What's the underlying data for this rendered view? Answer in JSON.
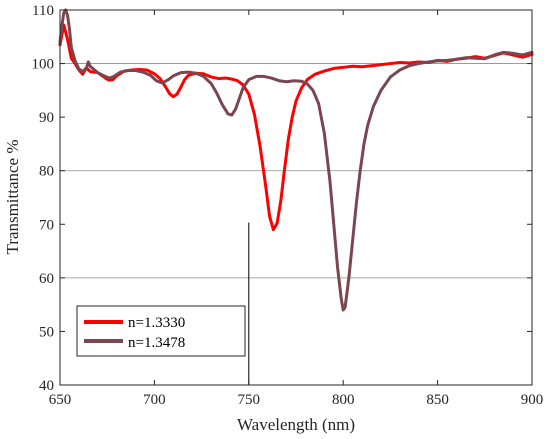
{
  "chart_data": {
    "type": "line",
    "xlabel": "Wavelength (nm)",
    "ylabel": "Transmittance %",
    "xlim": [
      650,
      900
    ],
    "ylim": [
      40,
      110
    ],
    "xticks": [
      650,
      700,
      750,
      800,
      850,
      900
    ],
    "yticks": [
      40,
      50,
      60,
      70,
      80,
      90,
      100,
      110
    ],
    "grid": "horizontal at 60, 80, 100",
    "legend_position": "bottom-left",
    "annotation_line": {
      "x": 750,
      "y_from": 40,
      "y_to": 70.3
    },
    "series": [
      {
        "name": "n=1.3330",
        "color": "#ff0000",
        "points": [
          [
            650,
            103.5
          ],
          [
            652,
            107.2
          ],
          [
            654,
            104.5
          ],
          [
            656,
            101
          ],
          [
            658,
            100
          ],
          [
            660,
            98.8
          ],
          [
            662,
            98
          ],
          [
            664,
            99.2
          ],
          [
            666,
            98.5
          ],
          [
            670,
            98.3
          ],
          [
            674,
            97.3
          ],
          [
            676,
            96.9
          ],
          [
            678,
            97
          ],
          [
            680,
            97.7
          ],
          [
            684,
            98.6
          ],
          [
            688,
            98.8
          ],
          [
            692,
            98.9
          ],
          [
            696,
            98.8
          ],
          [
            700,
            98.1
          ],
          [
            703,
            97.2
          ],
          [
            706,
            95.6
          ],
          [
            708,
            94.4
          ],
          [
            710,
            93.8
          ],
          [
            712,
            94.3
          ],
          [
            714,
            95.6
          ],
          [
            716,
            97
          ],
          [
            718,
            97.8
          ],
          [
            722,
            98.2
          ],
          [
            726,
            98.1
          ],
          [
            730,
            97.5
          ],
          [
            734,
            97.2
          ],
          [
            738,
            97.3
          ],
          [
            741,
            97.1
          ],
          [
            744,
            96.8
          ],
          [
            747,
            96
          ],
          [
            750,
            94.3
          ],
          [
            753,
            90.5
          ],
          [
            756,
            84.5
          ],
          [
            759,
            77
          ],
          [
            761,
            71.5
          ],
          [
            763,
            69
          ],
          [
            765,
            70.2
          ],
          [
            767,
            74.5
          ],
          [
            769,
            80.5
          ],
          [
            771,
            86
          ],
          [
            773,
            90
          ],
          [
            775,
            93
          ],
          [
            778,
            95.5
          ],
          [
            781,
            97
          ],
          [
            785,
            98
          ],
          [
            790,
            98.6
          ],
          [
            795,
            99.1
          ],
          [
            800,
            99.3
          ],
          [
            805,
            99.5
          ],
          [
            810,
            99.4
          ],
          [
            815,
            99.6
          ],
          [
            820,
            99.8
          ],
          [
            825,
            100
          ],
          [
            830,
            100.2
          ],
          [
            835,
            100.1
          ],
          [
            840,
            100.3
          ],
          [
            845,
            100.2
          ],
          [
            850,
            100.6
          ],
          [
            855,
            100.4
          ],
          [
            860,
            100.8
          ],
          [
            865,
            101
          ],
          [
            870,
            101.3
          ],
          [
            875,
            101
          ],
          [
            880,
            101.5
          ],
          [
            885,
            102
          ],
          [
            890,
            101.6
          ],
          [
            895,
            101.2
          ],
          [
            900,
            101.7
          ]
        ]
      },
      {
        "name": "n=1.3478",
        "color": "#7a4650",
        "points": [
          [
            650,
            104
          ],
          [
            651,
            107
          ],
          [
            652,
            109.5
          ],
          [
            653,
            110
          ],
          [
            654,
            109
          ],
          [
            655,
            106.5
          ],
          [
            656,
            103
          ],
          [
            658,
            100.5
          ],
          [
            660,
            99
          ],
          [
            662,
            98.5
          ],
          [
            664,
            99.2
          ],
          [
            665,
            100.3
          ],
          [
            666,
            99.5
          ],
          [
            670,
            98.3
          ],
          [
            674,
            97.6
          ],
          [
            676,
            97.3
          ],
          [
            678,
            97.5
          ],
          [
            682,
            98.4
          ],
          [
            686,
            98.7
          ],
          [
            690,
            98.7
          ],
          [
            694,
            98.4
          ],
          [
            698,
            97.8
          ],
          [
            701,
            96.8
          ],
          [
            704,
            96.4
          ],
          [
            707,
            96.9
          ],
          [
            710,
            97.7
          ],
          [
            714,
            98.3
          ],
          [
            718,
            98.4
          ],
          [
            722,
            98.2
          ],
          [
            726,
            97.6
          ],
          [
            730,
            96.3
          ],
          [
            733,
            94.5
          ],
          [
            736,
            92.3
          ],
          [
            739,
            90.6
          ],
          [
            741,
            90.4
          ],
          [
            743,
            91.5
          ],
          [
            745,
            93.5
          ],
          [
            747,
            95.5
          ],
          [
            750,
            97
          ],
          [
            754,
            97.6
          ],
          [
            758,
            97.6
          ],
          [
            762,
            97.3
          ],
          [
            766,
            96.8
          ],
          [
            770,
            96.6
          ],
          [
            774,
            96.8
          ],
          [
            778,
            96.7
          ],
          [
            781,
            96.2
          ],
          [
            784,
            95
          ],
          [
            787,
            92.5
          ],
          [
            790,
            87
          ],
          [
            793,
            78
          ],
          [
            795,
            70
          ],
          [
            797,
            62
          ],
          [
            799,
            56
          ],
          [
            800,
            54
          ],
          [
            801,
            54.5
          ],
          [
            803,
            60
          ],
          [
            805,
            67
          ],
          [
            807,
            74
          ],
          [
            809,
            80
          ],
          [
            811,
            85
          ],
          [
            813,
            88.5
          ],
          [
            816,
            92
          ],
          [
            820,
            95
          ],
          [
            825,
            97.5
          ],
          [
            830,
            98.8
          ],
          [
            835,
            99.6
          ],
          [
            840,
            100
          ],
          [
            845,
            100.3
          ],
          [
            850,
            100.5
          ],
          [
            855,
            100.6
          ],
          [
            860,
            100.8
          ],
          [
            865,
            101.1
          ],
          [
            870,
            101
          ],
          [
            875,
            100.9
          ],
          [
            880,
            101.6
          ],
          [
            885,
            102.1
          ],
          [
            890,
            101.9
          ],
          [
            895,
            101.6
          ],
          [
            900,
            102.1
          ]
        ]
      }
    ]
  }
}
